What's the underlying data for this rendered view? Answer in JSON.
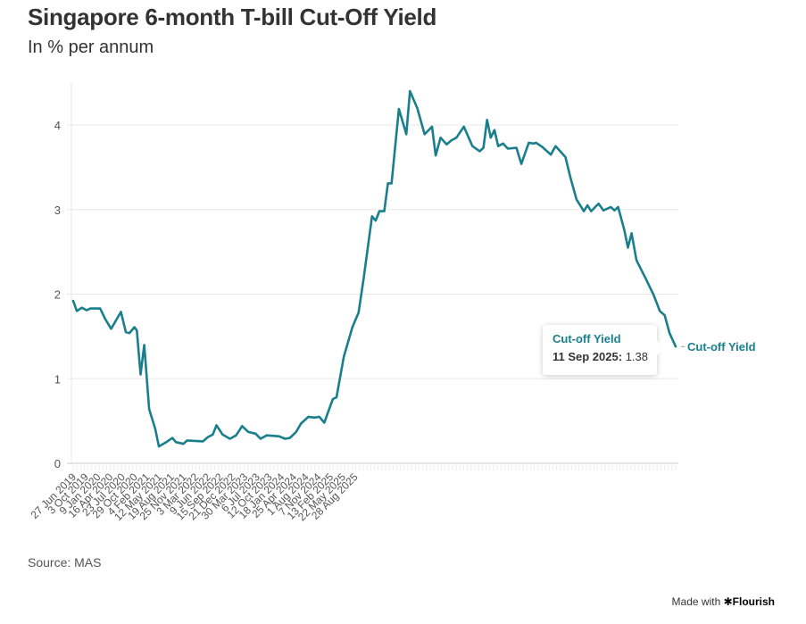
{
  "header": {
    "title": "Singapore 6-month T-bill Cut-Off Yield",
    "subtitle": "In % per annum"
  },
  "footer": {
    "source": "Source: MAS",
    "made_with": "Made with",
    "brand": "Flourish",
    "brand_icon": "asterisk-icon"
  },
  "tooltip": {
    "series": "Cut-off Yield",
    "date": "11 Sep 2025:",
    "value": "1.38"
  },
  "colors": {
    "line": "#1a7f8c",
    "grid": "#e8e8e8",
    "text": "#333333"
  },
  "chart_data": {
    "type": "line",
    "title": "Singapore 6-month T-bill Cut-Off Yield",
    "subtitle": "In % per annum",
    "xlabel": "",
    "ylabel": "",
    "ylim": [
      0,
      4.5
    ],
    "yticks": [
      0,
      1,
      2,
      3,
      4
    ],
    "grid": true,
    "legend": "end-of-line label",
    "x_count": 163,
    "x_tick_every": 7,
    "x_tick_labels": [
      "27 Jun 2019",
      "3 Oct 2019",
      "9 Jan 2020",
      "16 Apr 2020",
      "23 Jul 2020",
      "29 Oct 2020",
      "4 Feb 2021",
      "12 May 2021",
      "19 Aug 2021",
      "25 Nov 2021",
      "3 Mar 2022",
      "9 Jun 2022",
      "15 Sep 2022",
      "21 Dec 2022",
      "30 Mar 2023",
      "6 Jul 2023",
      "12 Oct 2023",
      "18 Jan 2024",
      "25 Apr 2024",
      "1 Aug 2024",
      "7 Nov 2024",
      "13 Feb 2025",
      "22 May 2025",
      "28 Aug 2025"
    ],
    "last_date": "11 Sep 2025",
    "series": [
      {
        "name": "Cut-off Yield",
        "points_index_value": [
          [
            0,
            1.92
          ],
          [
            0.3,
            1.8
          ],
          [
            0.7,
            1.84
          ],
          [
            1.1,
            1.81
          ],
          [
            1.4,
            1.83
          ],
          [
            2.2,
            1.83
          ],
          [
            2.6,
            1.71
          ],
          [
            3.1,
            1.59
          ],
          [
            3.9,
            1.79
          ],
          [
            4.3,
            1.55
          ],
          [
            4.6,
            1.54
          ],
          [
            5.0,
            1.61
          ],
          [
            5.2,
            1.57
          ],
          [
            5.5,
            1.05
          ],
          [
            5.8,
            1.4
          ],
          [
            6.2,
            0.64
          ],
          [
            6.7,
            0.41
          ],
          [
            7.0,
            0.2
          ],
          [
            7.6,
            0.25
          ],
          [
            8.1,
            0.3
          ],
          [
            8.4,
            0.25
          ],
          [
            9.0,
            0.23
          ],
          [
            9.3,
            0.27
          ],
          [
            10.6,
            0.26
          ],
          [
            11.0,
            0.31
          ],
          [
            11.4,
            0.34
          ],
          [
            11.7,
            0.45
          ],
          [
            12.2,
            0.34
          ],
          [
            12.8,
            0.29
          ],
          [
            13.3,
            0.33
          ],
          [
            13.8,
            0.44
          ],
          [
            14.3,
            0.37
          ],
          [
            14.9,
            0.35
          ],
          [
            15.3,
            0.29
          ],
          [
            15.8,
            0.33
          ],
          [
            16.8,
            0.32
          ],
          [
            17.3,
            0.29
          ],
          [
            17.7,
            0.3
          ],
          [
            18.2,
            0.37
          ],
          [
            18.6,
            0.47
          ],
          [
            19.2,
            0.55
          ],
          [
            19.7,
            0.54
          ],
          [
            20.1,
            0.55
          ],
          [
            20.5,
            0.48
          ],
          [
            21.2,
            0.76
          ],
          [
            21.5,
            0.78
          ],
          [
            22.1,
            1.26
          ],
          [
            22.8,
            1.61
          ],
          [
            23.3,
            1.78
          ],
          [
            23.7,
            2.17
          ],
          [
            24.4,
            2.92
          ],
          [
            24.7,
            2.87
          ],
          [
            25.0,
            2.98
          ],
          [
            25.4,
            2.98
          ],
          [
            25.7,
            3.31
          ],
          [
            26.0,
            3.31
          ],
          [
            26.6,
            4.19
          ],
          [
            27.2,
            3.89
          ],
          [
            27.5,
            4.4
          ],
          [
            28.1,
            4.2
          ],
          [
            28.7,
            3.89
          ],
          [
            29.3,
            3.98
          ],
          [
            29.6,
            3.64
          ],
          [
            30.0,
            3.85
          ],
          [
            30.5,
            3.77
          ],
          [
            30.9,
            3.82
          ],
          [
            31.3,
            3.85
          ],
          [
            31.9,
            3.98
          ],
          [
            32.6,
            3.75
          ],
          [
            33.2,
            3.69
          ],
          [
            33.5,
            3.73
          ],
          [
            33.8,
            4.06
          ],
          [
            34.1,
            3.85
          ],
          [
            34.4,
            3.94
          ],
          [
            34.7,
            3.75
          ],
          [
            35.1,
            3.78
          ],
          [
            35.5,
            3.72
          ],
          [
            36.2,
            3.73
          ],
          [
            36.6,
            3.54
          ],
          [
            37.2,
            3.79
          ],
          [
            37.6,
            3.78
          ],
          [
            37.8,
            3.79
          ],
          [
            38.3,
            3.74
          ],
          [
            39.0,
            3.65
          ],
          [
            39.4,
            3.75
          ],
          [
            40.2,
            3.62
          ],
          [
            40.6,
            3.38
          ],
          [
            41.1,
            3.12
          ],
          [
            41.7,
            2.98
          ],
          [
            42.0,
            3.05
          ],
          [
            42.3,
            2.98
          ],
          [
            42.9,
            3.07
          ],
          [
            43.3,
            2.99
          ],
          [
            43.9,
            3.03
          ],
          [
            44.2,
            2.99
          ],
          [
            44.5,
            3.03
          ],
          [
            45.0,
            2.76
          ],
          [
            45.3,
            2.55
          ],
          [
            45.6,
            2.72
          ],
          [
            46.0,
            2.4
          ],
          [
            46.8,
            2.17
          ],
          [
            47.4,
            1.99
          ],
          [
            47.9,
            1.8
          ],
          [
            48.3,
            1.75
          ],
          [
            48.7,
            1.54
          ],
          [
            49.2,
            1.38
          ]
        ],
        "points_scale_note": "x in tick-interval units (1 unit = 7 biweekly auctions); 0 = 27 Jun 2019, 49.2 ≈ 11 Sep 2025"
      }
    ]
  }
}
